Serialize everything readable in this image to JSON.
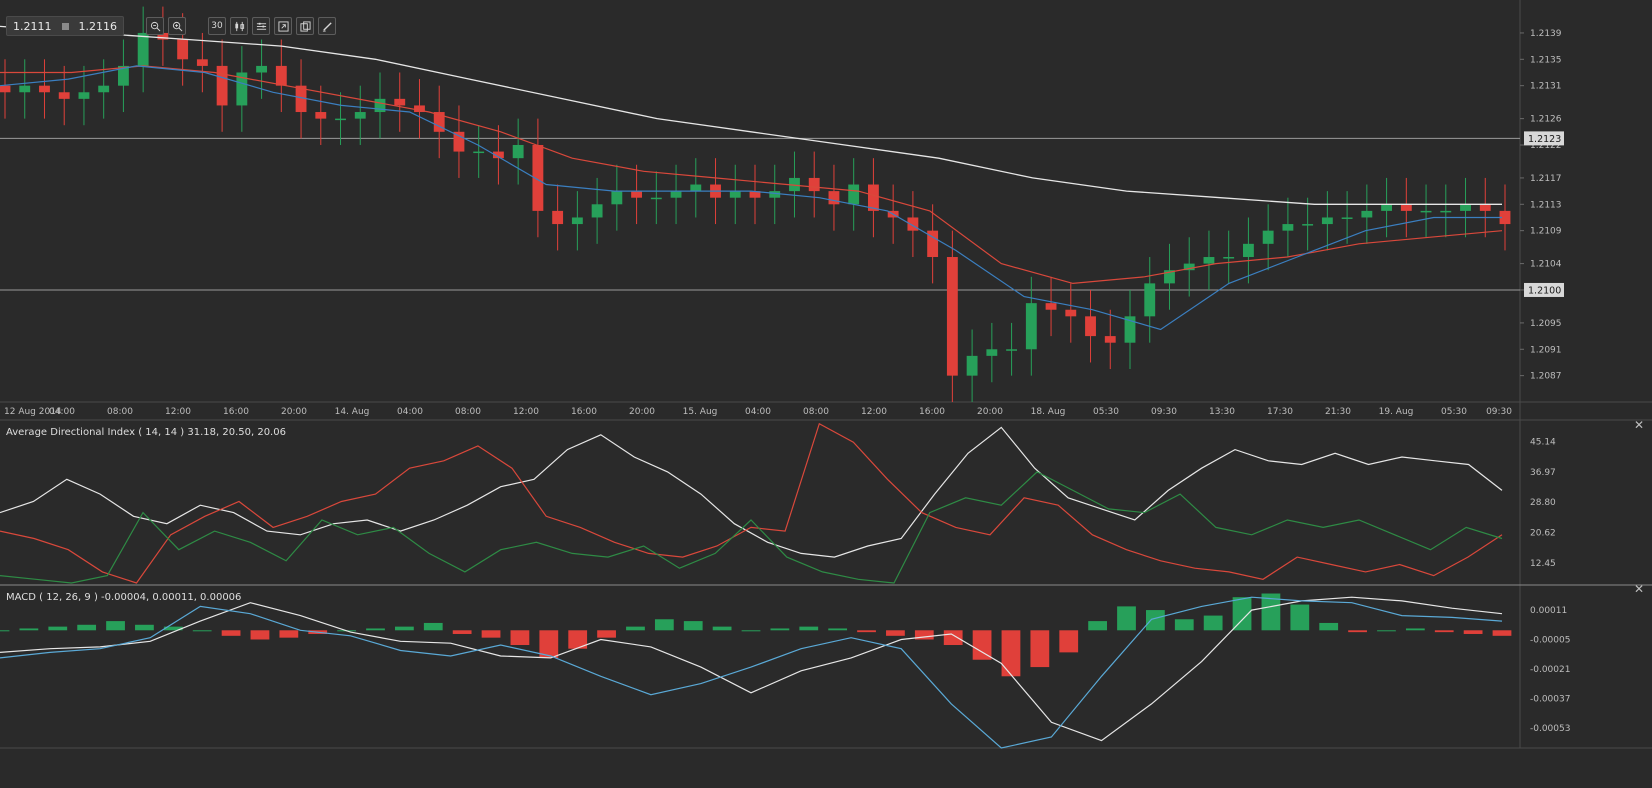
{
  "toolbar": {
    "bid": "1.2111",
    "ask": "1.2116",
    "timeframe": "30",
    "icons": [
      "zoom-out-icon",
      "zoom-in-icon",
      "timeframe-button",
      "candles-icon",
      "indicators-icon",
      "expand-icon",
      "copy-icon",
      "draw-icon"
    ]
  },
  "colors": {
    "background": "#2a2a2a",
    "bull": "#27a05a",
    "bear": "#e0403a",
    "sma_long": "#e6e6e6",
    "sma_mid": "#d9483b",
    "sma_short": "#3b7fc0",
    "adx": "#e6e6e6",
    "di_plus": "#2e8b45",
    "di_minus": "#d9483b",
    "macd": "#e6e6e6",
    "signal": "#5aa9d6"
  },
  "chart_data": [
    {
      "type": "candlestick",
      "symbol_quote": {
        "bid": "1.2111",
        "ask": "1.2116"
      },
      "x_tick_labels": [
        "12 Aug 2014",
        "04:00",
        "08:00",
        "12:00",
        "16:00",
        "20:00",
        "14. Aug",
        "04:00",
        "08:00",
        "12:00",
        "16:00",
        "20:00",
        "15. Aug",
        "04:00",
        "08:00",
        "12:00",
        "16:00",
        "20:00",
        "18. Aug",
        "05:30",
        "09:30",
        "13:30",
        "17:30",
        "21:30",
        "19. Aug",
        "05:30",
        "09:30"
      ],
      "y_tick_labels": [
        "1.2139",
        "1.2135",
        "1.2131",
        "1.2126",
        "1.2122",
        "1.2117",
        "1.2113",
        "1.2109",
        "1.2104",
        "1.2100",
        "1.2095",
        "1.2091",
        "1.2087"
      ],
      "ylim": [
        1.2083,
        1.2144
      ],
      "horizontal_lines": [
        1.2123,
        1.21
      ],
      "horizontal_line_labels": [
        "1.2123",
        "1.2100"
      ],
      "close_series": [
        1.213,
        1.2131,
        1.213,
        1.2129,
        1.213,
        1.2131,
        1.2134,
        1.2139,
        1.2138,
        1.2135,
        1.2134,
        1.2128,
        1.2133,
        1.2134,
        1.2131,
        1.2127,
        1.2126,
        1.2126,
        1.2127,
        1.2129,
        1.2128,
        1.2127,
        1.2124,
        1.2121,
        1.2121,
        1.212,
        1.2122,
        1.2112,
        1.211,
        1.2111,
        1.2113,
        1.2115,
        1.2114,
        1.2114,
        1.2115,
        1.2116,
        1.2114,
        1.2115,
        1.2114,
        1.2115,
        1.2117,
        1.2115,
        1.2113,
        1.2116,
        1.2112,
        1.2111,
        1.2109,
        1.2105,
        1.2087,
        1.209,
        1.2091,
        1.2091,
        1.2098,
        1.2097,
        1.2096,
        1.2093,
        1.2092,
        1.2096,
        1.2101,
        1.2103,
        1.2104,
        1.2105,
        1.2105,
        1.2107,
        1.2109,
        1.211,
        1.211,
        1.2111,
        1.2111,
        1.2112,
        1.2113,
        1.2112,
        1.2112,
        1.2112,
        1.2113,
        1.2112,
        1.211
      ],
      "sma_long": [
        1.214,
        1.2139,
        1.2138,
        1.2137,
        1.2135,
        1.2132,
        1.2129,
        1.2126,
        1.2124,
        1.2122,
        1.212,
        1.2117,
        1.2115,
        1.2114,
        1.2113,
        1.2113,
        1.2113
      ],
      "sma_mid": [
        1.2133,
        1.2133,
        1.2134,
        1.2133,
        1.2131,
        1.2129,
        1.2127,
        1.2124,
        1.212,
        1.2118,
        1.2117,
        1.2116,
        1.2115,
        1.2112,
        1.2104,
        1.2101,
        1.2102,
        1.2104,
        1.2105,
        1.2107,
        1.2108,
        1.2109
      ],
      "sma_short": [
        1.2131,
        1.2132,
        1.2134,
        1.2133,
        1.213,
        1.2128,
        1.2127,
        1.2122,
        1.2116,
        1.2115,
        1.2115,
        1.2115,
        1.2114,
        1.2112,
        1.2106,
        1.2099,
        1.2097,
        1.2094,
        1.2101,
        1.2105,
        1.2109,
        1.2111,
        1.2111
      ]
    },
    {
      "type": "line",
      "title": "Average Directional Index ( 14, 14 ) 31.18, 20.50, 20.06",
      "y_tick_labels": [
        "45.14",
        "36.97",
        "28.80",
        "20.62",
        "12.45"
      ],
      "ylim": [
        7,
        51
      ],
      "series": [
        {
          "key": "adx",
          "values": [
            26,
            29,
            35,
            31,
            25,
            23,
            28,
            26,
            21,
            20,
            23,
            24,
            21,
            24,
            28,
            33,
            35,
            43,
            47,
            41,
            37,
            31,
            23,
            18,
            15,
            14,
            17,
            19,
            31,
            42,
            49,
            38,
            30,
            27,
            24,
            32,
            38,
            43,
            40,
            39,
            42,
            39,
            41,
            40,
            39,
            32
          ]
        },
        {
          "key": "di_minus",
          "values": [
            21,
            19,
            16,
            10,
            7,
            20,
            25,
            29,
            22,
            25,
            29,
            31,
            38,
            40,
            44,
            38,
            25,
            22,
            18,
            15,
            14,
            17,
            22,
            21,
            50,
            45,
            35,
            26,
            22,
            20,
            30,
            28,
            20,
            16,
            13,
            11,
            10,
            8,
            14,
            12,
            10,
            12,
            9,
            14,
            20
          ]
        },
        {
          "key": "di_plus",
          "values": [
            9,
            8,
            7,
            9,
            26,
            16,
            21,
            18,
            13,
            24,
            20,
            22,
            15,
            10,
            16,
            18,
            15,
            14,
            17,
            11,
            15,
            24,
            14,
            10,
            8,
            7,
            26,
            30,
            28,
            37,
            32,
            27,
            26,
            31,
            22,
            20,
            24,
            22,
            24,
            20,
            16,
            22,
            19
          ]
        }
      ]
    },
    {
      "type": "line",
      "title": "MACD ( 12, 26, 9 ) -0.00004, 0.00011, 0.00006",
      "y_tick_labels": [
        "0.00011",
        "-0.00005",
        "-0.00021",
        "-0.00037",
        "-0.00053"
      ],
      "ylim": [
        -0.00064,
        0.00023
      ],
      "series": [
        {
          "key": "macd",
          "values": [
            -0.00012,
            -0.0001,
            -9e-05,
            -6e-05,
            5e-05,
            0.00015,
            8e-05,
            -1e-05,
            -6e-05,
            -7e-05,
            -0.00014,
            -0.00015,
            -5e-05,
            -9e-05,
            -0.0002,
            -0.00034,
            -0.00022,
            -0.00015,
            -5e-05,
            -2e-05,
            -0.00018,
            -0.0005,
            -0.0006,
            -0.0004,
            -0.00017,
            0.00011,
            0.00016,
            0.00018,
            0.00016,
            0.00012,
            9e-05
          ]
        },
        {
          "key": "signal",
          "values": [
            -0.00015,
            -0.00012,
            -0.0001,
            -4e-05,
            0.00013,
            9e-05,
            0.0,
            -3e-05,
            -0.00011,
            -0.00014,
            -8e-05,
            -0.00014,
            -0.00025,
            -0.00035,
            -0.00029,
            -0.0002,
            -0.0001,
            -4e-05,
            -0.0001,
            -0.0004,
            -0.00064,
            -0.00058,
            -0.00025,
            6e-05,
            0.00013,
            0.00018,
            0.00016,
            0.00015,
            8e-05,
            7e-05,
            5e-05
          ]
        },
        {
          "key": "histogram",
          "values": [
            0,
            1e-05,
            2e-05,
            3e-05,
            5e-05,
            3e-05,
            2e-05,
            0,
            -3e-05,
            -5e-05,
            -4e-05,
            -2e-05,
            0,
            1e-05,
            2e-05,
            4e-05,
            -2e-05,
            -4e-05,
            -8e-05,
            -0.00015,
            -0.0001,
            -4e-05,
            2e-05,
            6e-05,
            5e-05,
            2e-05,
            0,
            1e-05,
            2e-05,
            1e-05,
            -1e-05,
            -3e-05,
            -5e-05,
            -8e-05,
            -0.00016,
            -0.00025,
            -0.0002,
            -0.00012,
            5e-05,
            0.00013,
            0.00011,
            6e-05,
            8e-05,
            0.00018,
            0.0002,
            0.00014,
            4e-05,
            -1e-05,
            0,
            1e-05,
            -1e-05,
            -2e-05,
            -3e-05
          ]
        }
      ]
    }
  ]
}
